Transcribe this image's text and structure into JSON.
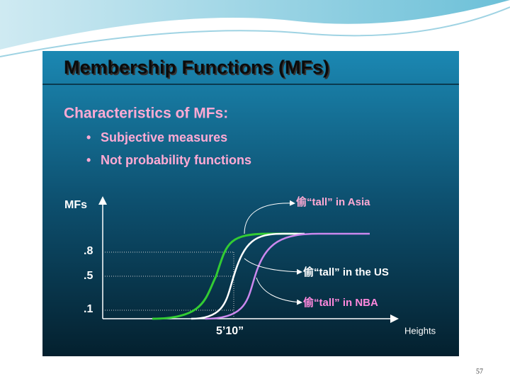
{
  "slide": {
    "title": "Membership Functions (MFs)",
    "heading": "Characteristics of MFs:",
    "bullets": [
      "Subjective measures",
      "Not probability  functions"
    ],
    "diagram": {
      "y_axis_label": "MFs",
      "x_axis_label": "Heights",
      "y_labels": [
        ".8",
        ".5",
        ".1"
      ],
      "x_label": "5’10”",
      "annotations": [
        "偷“tall” in Asia",
        "偷“tall” in the US",
        "偷“tall” in NBA"
      ]
    },
    "page_number": "57"
  }
}
